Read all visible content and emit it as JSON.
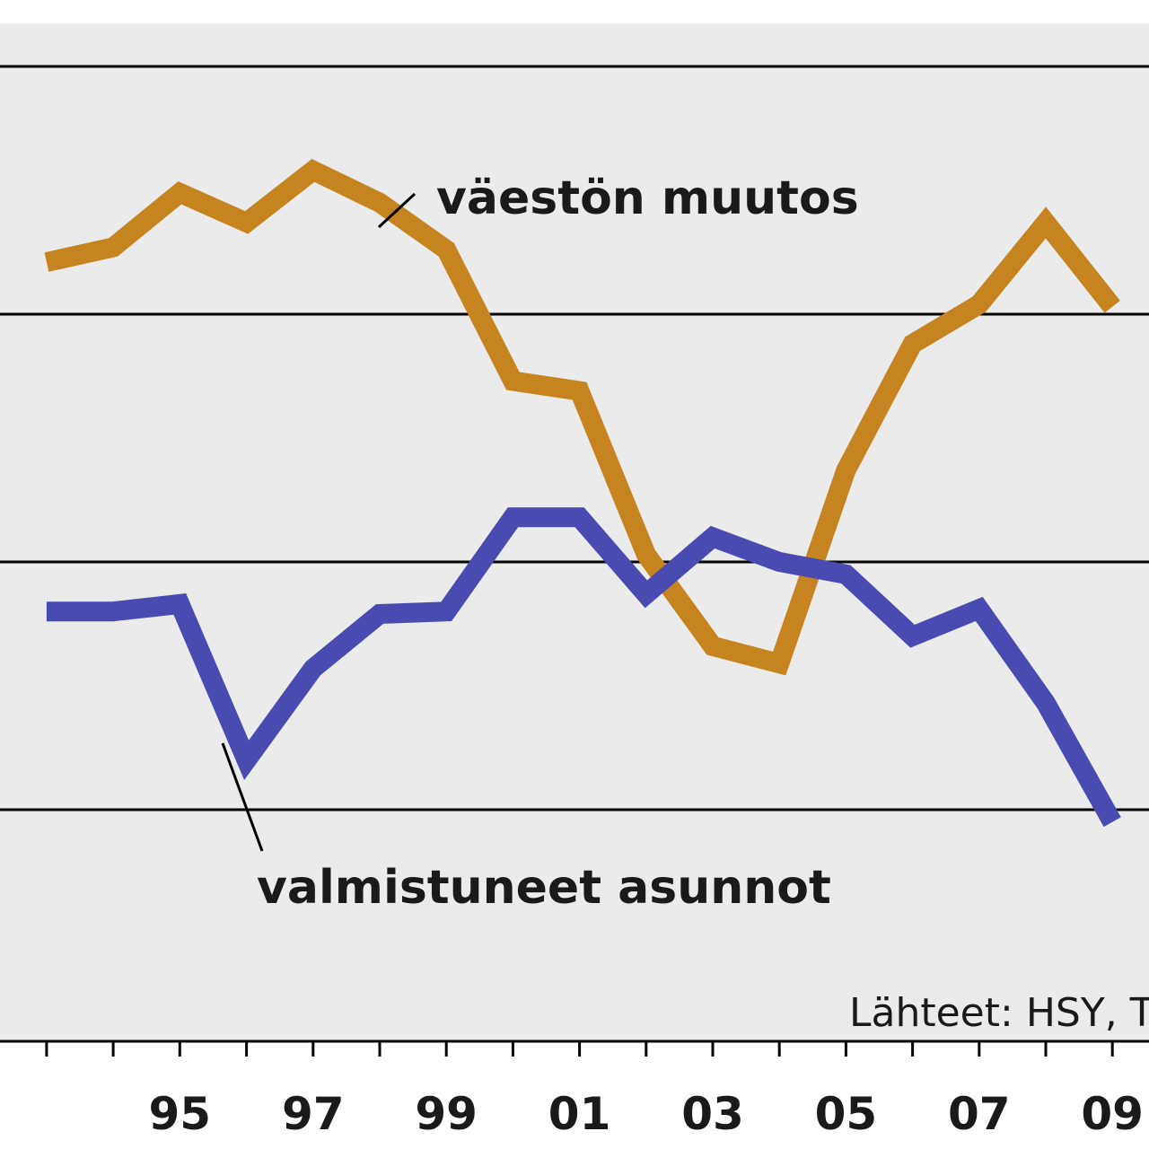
{
  "chart_data": {
    "type": "line",
    "title": "",
    "xlabel": "",
    "ylabel": "",
    "x": [
      1993,
      1994,
      1995,
      1996,
      1997,
      1998,
      1999,
      2000,
      2001,
      2002,
      2003,
      2004,
      2005,
      2006,
      2007,
      2008,
      2009
    ],
    "x_ticks": [
      {
        "year": 1995,
        "label": "95"
      },
      {
        "year": 1997,
        "label": "97"
      },
      {
        "year": 1999,
        "label": "99"
      },
      {
        "year": 2001,
        "label": "01"
      },
      {
        "year": 2003,
        "label": "03"
      },
      {
        "year": 2005,
        "label": "05"
      },
      {
        "year": 2007,
        "label": "07"
      },
      {
        "year": 2009,
        "label": "09"
      }
    ],
    "xlim": [
      1992.3,
      2009.55
    ],
    "ylim": [
      0,
      4
    ],
    "gridlines": [
      1,
      2,
      3,
      4
    ],
    "y_tick_labels": "not visible",
    "series": [
      {
        "name": "väestön muutos",
        "color": "#c5841f",
        "values": [
          3.21,
          3.27,
          3.49,
          3.37,
          3.58,
          3.45,
          3.26,
          2.73,
          2.69,
          2.03,
          1.66,
          1.59,
          2.37,
          2.88,
          3.04,
          3.37,
          3.03
        ]
      },
      {
        "name": "valmistuneet asunnot",
        "color": "#4a4bb0",
        "values": [
          1.8,
          1.8,
          1.83,
          1.2,
          1.57,
          1.79,
          1.8,
          2.18,
          2.18,
          1.87,
          2.1,
          2.0,
          1.95,
          1.7,
          1.81,
          1.43,
          0.95
        ]
      }
    ],
    "grid": true,
    "legend": "direct labels"
  },
  "labels": {
    "population_change": "väestön muutos",
    "completed_dwellings": "valmistuneet asunnot"
  },
  "source": "Lähteet: HSY, Tilastokeskus"
}
